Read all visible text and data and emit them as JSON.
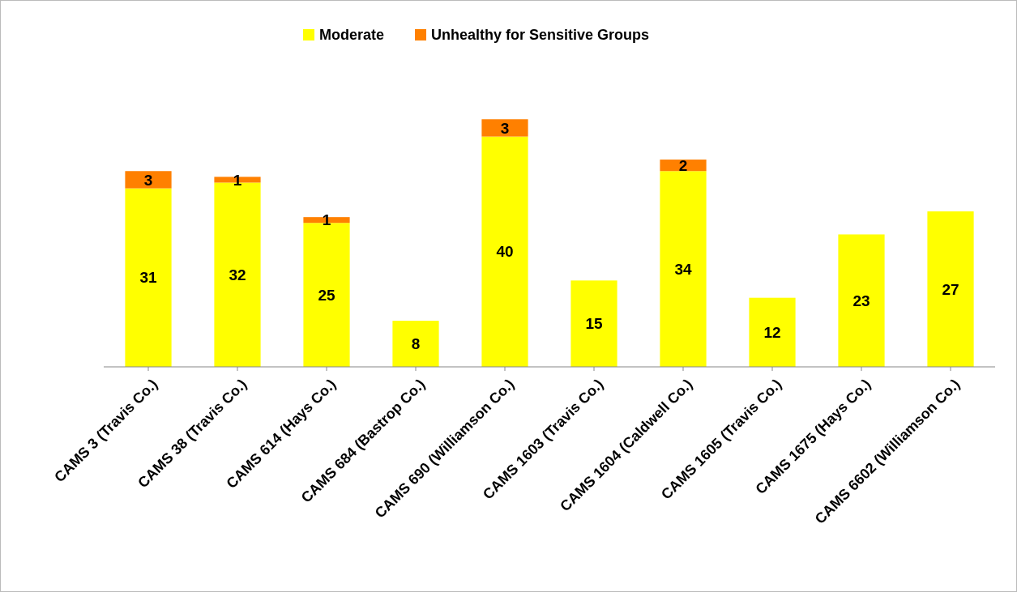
{
  "chart_data": {
    "type": "bar",
    "stacked": true,
    "data_labels": true,
    "legend": "top",
    "categories": [
      "CAMS 3 (Travis Co.)",
      "CAMS 38 (Travis Co.)",
      "CAMS 614 (Hays Co.)",
      "CAMS 684 (Bastrop Co.)",
      "CAMS 690 (Williamson Co.)",
      "CAMS 1603 (Travis Co.)",
      "CAMS 1604 (Caldwell Co.)",
      "CAMS 1605 (Travis Co.)",
      "CAMS 1675 (Hays Co.)",
      "CAMS 6602 (Williamson Co.)"
    ],
    "series": [
      {
        "name": "Moderate",
        "color": "#ffff00",
        "values": [
          31,
          32,
          25,
          8,
          40,
          15,
          34,
          12,
          23,
          27
        ]
      },
      {
        "name": "Unhealthy for Sensitive Groups",
        "color": "#ff8000",
        "values": [
          3,
          1,
          1,
          null,
          3,
          null,
          2,
          null,
          null,
          null
        ]
      }
    ]
  }
}
